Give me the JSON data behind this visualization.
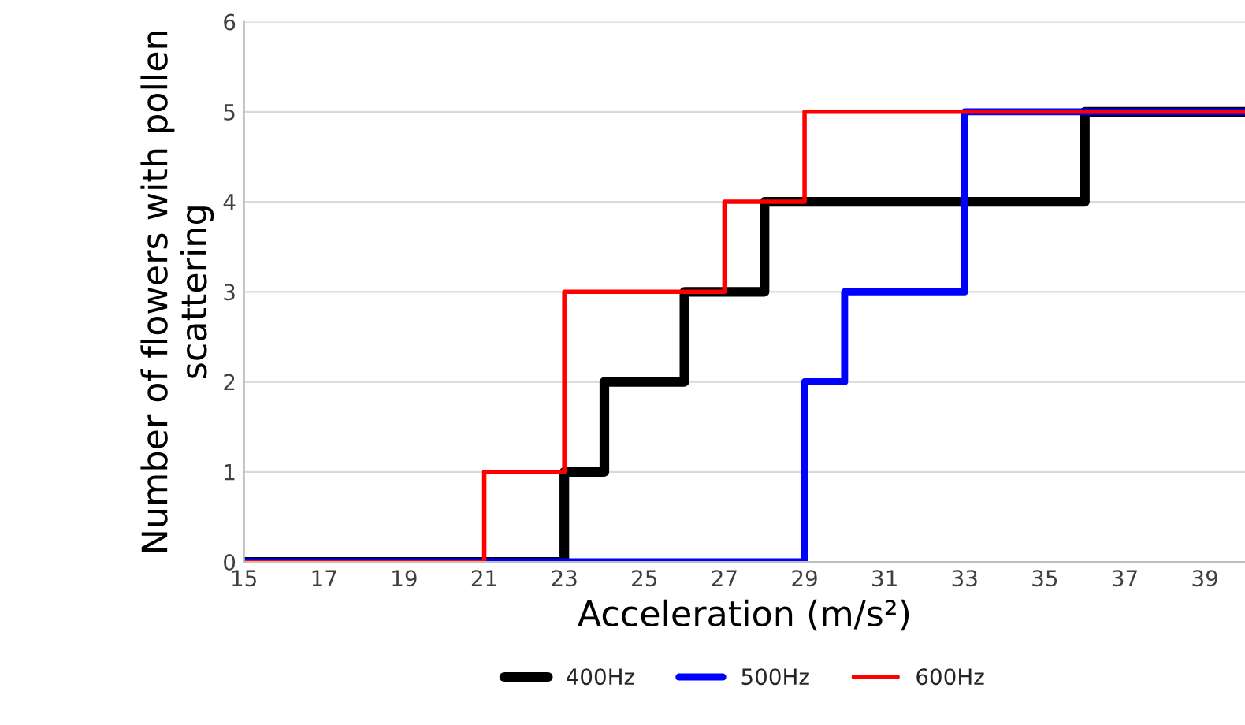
{
  "chart_data": {
    "type": "step",
    "xlabel": "Acceleration (m/s²)",
    "ylabel": "Number of flowers with pollen scattering",
    "xlim": [
      15,
      40
    ],
    "xticks": [
      15,
      17,
      19,
      21,
      23,
      25,
      27,
      29,
      31,
      33,
      35,
      37,
      39
    ],
    "ylim": [
      0,
      6
    ],
    "yticks": [
      0,
      1,
      2,
      3,
      4,
      5,
      6
    ],
    "grid": "y",
    "legend": "bottom",
    "line_style": "solid",
    "series": [
      {
        "name": "400Hz",
        "color": "#000000",
        "x": [
          15,
          23,
          24,
          26,
          28,
          36,
          40
        ],
        "values": [
          0,
          1,
          2,
          3,
          4,
          5,
          5
        ]
      },
      {
        "name": "500Hz",
        "color": "#0000ff",
        "x": [
          15,
          29,
          30,
          33,
          40
        ],
        "values": [
          0,
          2,
          3,
          5,
          5
        ]
      },
      {
        "name": "600Hz",
        "color": "#ff0000",
        "x": [
          15,
          21,
          23,
          27,
          29,
          40
        ],
        "values": [
          0,
          1,
          3,
          4,
          5,
          5
        ]
      }
    ]
  }
}
